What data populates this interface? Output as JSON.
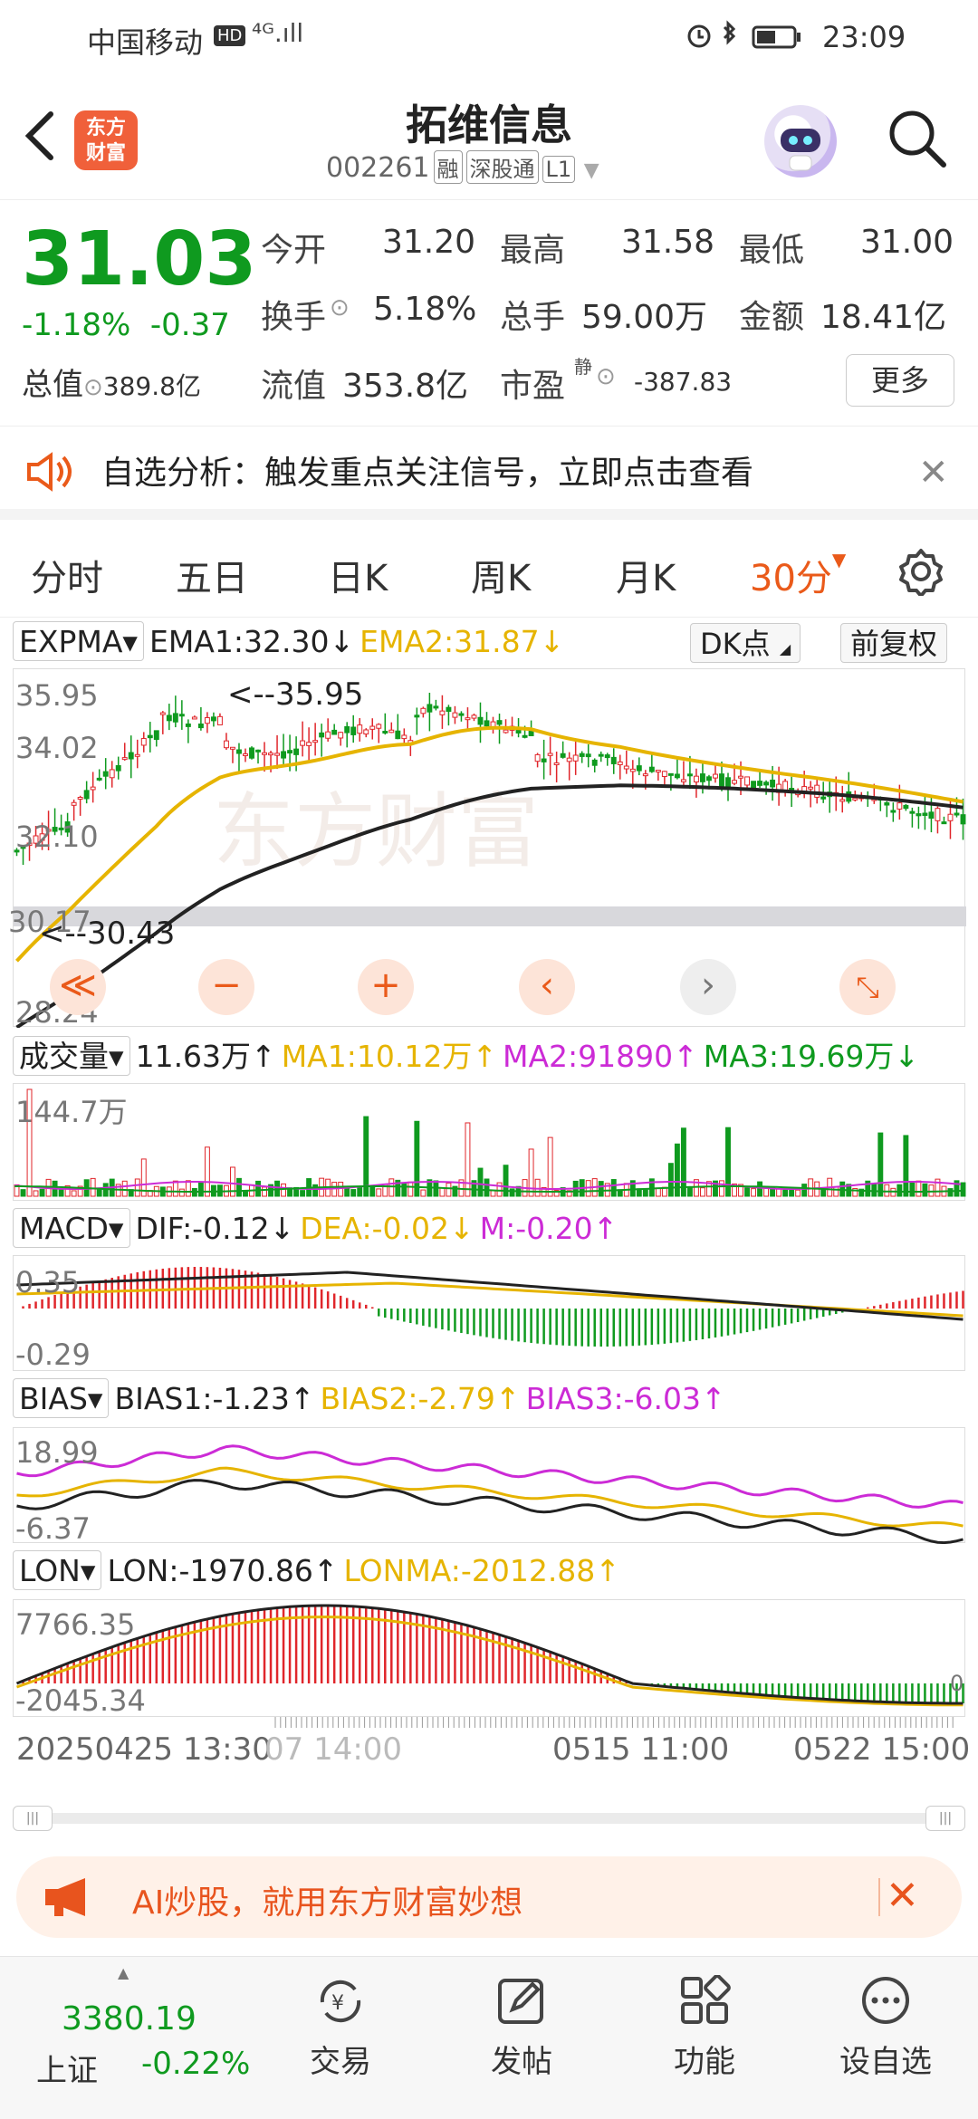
{
  "status_bar": {
    "carrier": "中国移动",
    "hd": "HD",
    "signal": "⁴ᴳ.ıll",
    "time": "23:09"
  },
  "header": {
    "title": "拓维信息",
    "code": "002261",
    "tags": [
      "融",
      "深股通",
      "L1"
    ],
    "logo_line1": "东方",
    "logo_line2": "财富"
  },
  "quote": {
    "price": "31.03",
    "change_pct": "-1.18%",
    "change_abs": "-0.37",
    "open_label": "今开",
    "open": "31.20",
    "high_label": "最高",
    "high": "31.58",
    "low_label": "最低",
    "low": "31.00",
    "turnover_label": "换手",
    "turnover": "5.18%",
    "volume_label": "总手",
    "volume": "59.00万",
    "amount_label": "金额",
    "amount": "18.41亿",
    "mktcap_label": "总值",
    "mktcap": "389.8亿",
    "float_label": "流值",
    "float_cap": "353.8亿",
    "pe_label": "市盈",
    "pe_sup": "静",
    "pe": "-387.83",
    "more": "更多"
  },
  "notice": {
    "text": "自选分析：触发重点关注信号，立即点击查看"
  },
  "tabs": [
    "分时",
    "五日",
    "日K",
    "周K",
    "月K",
    "30分"
  ],
  "main_chart": {
    "indicator": "EXPMA",
    "ema1": "EMA1:32.30↓",
    "ema2": "EMA2:31.87↓",
    "dk": "DK点",
    "fq": "前复权",
    "y_top": "35.95",
    "y_2": "34.02",
    "y_3": "32.10",
    "y_4": "30.17",
    "y_bottom": "28.24",
    "max_mark": "<--35.95",
    "min_mark": "<--30.43",
    "watermark": "东方财富"
  },
  "volume_chart": {
    "indicator": "成交量",
    "value": "11.63万↑",
    "ma1": "MA1:10.12万↑",
    "ma2": "MA2:91890↑",
    "ma3": "MA3:19.69万↓",
    "y_top": "144.7万"
  },
  "macd_chart": {
    "indicator": "MACD",
    "dif": "DIF:-0.12↓",
    "dea": "DEA:-0.02↓",
    "m": "M:-0.20↑",
    "y_top": "0.35",
    "y_bottom": "-0.29"
  },
  "bias_chart": {
    "indicator": "BIAS",
    "b1": "BIAS1:-1.23↑",
    "b2": "BIAS2:-2.79↑",
    "b3": "BIAS3:-6.03↑",
    "y_top": "18.99",
    "y_bottom": "-6.37"
  },
  "lon_chart": {
    "indicator": "LON",
    "lon": "LON:-1970.86↑",
    "lonma": "LONMA:-2012.88↑",
    "y_top": "7766.35",
    "y_bottom": "-2045.34",
    "y_zero": "0"
  },
  "date_axis": {
    "d1": "20250425 13:30",
    "d1b": "07 14:00",
    "d2": "0515 11:00",
    "d3": "0522 15:00"
  },
  "ad": {
    "text": "AI炒股，就用东方财富妙想"
  },
  "bottom_nav": {
    "index_value": "3380.19",
    "index_name": "上证",
    "index_change": "-0.22%",
    "items": [
      "交易",
      "发帖",
      "功能",
      "设自选"
    ]
  },
  "colors": {
    "up": "#e0262b",
    "down": "#0f9a1f",
    "ema1": "#222222",
    "ema2": "#e6b400",
    "ma3": "#cc2bd6",
    "accent": "#ea5a1a"
  }
}
